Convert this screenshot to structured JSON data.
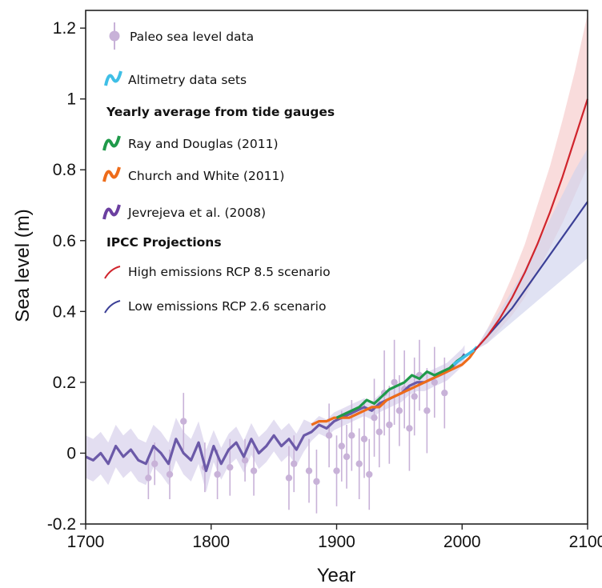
{
  "chart_data": {
    "type": "line",
    "title": "",
    "xlabel": "Year",
    "ylabel": "Sea  level (m)",
    "xlim": [
      1700,
      2100
    ],
    "ylim": [
      -0.2,
      1.25
    ],
    "x_ticks": [
      1700,
      1800,
      1900,
      2000,
      2100
    ],
    "x_tick_labels": [
      "1700",
      "1800",
      "1900",
      "2000",
      "2100"
    ],
    "y_ticks": [
      -0.2,
      0,
      0.2,
      0.4,
      0.6,
      0.8,
      1,
      1.2
    ],
    "y_tick_labels": [
      "-0.2",
      "0",
      "0.2",
      "0.4",
      "0.6",
      "0.8",
      "1",
      "1.2"
    ],
    "grid": false,
    "legend_position": "top-left",
    "legend": {
      "paleo": "Paleo sea level data",
      "altimetry": "Altimetry data sets",
      "tide_header": "Yearly average from tide gauges",
      "ray": "Ray and Douglas (2011)",
      "church": "Church and White (2011)",
      "jevrejeva": "Jevrejeva et al. (2008)",
      "ipcc_header": "IPCC Projections",
      "high": "High emissions RCP 8.5 scenario",
      "low": "Low emissions RCP 2.6 scenario"
    },
    "colors": {
      "paleo": "#c8b2d8",
      "altimetry": "#3fbfe6",
      "ray": "#1f9a4a",
      "church": "#ee6c1a",
      "jevrejeva": "#6b59a8",
      "jevrejeva_band": "#d9d3ec",
      "high": "#d0242c",
      "high_band": "#f6c9c9",
      "low": "#3b3f96",
      "low_band": "#cfd2ec"
    },
    "series": [
      {
        "name": "Jevrejeva et al. (2008)",
        "x": [
          1700,
          1706,
          1712,
          1718,
          1724,
          1730,
          1736,
          1742,
          1748,
          1754,
          1760,
          1766,
          1772,
          1778,
          1784,
          1790,
          1796,
          1802,
          1808,
          1814,
          1820,
          1826,
          1832,
          1838,
          1844,
          1850,
          1856,
          1862,
          1868,
          1874,
          1880,
          1886,
          1892,
          1898,
          1904,
          1910,
          1916,
          1922,
          1928,
          1934,
          1940,
          1946,
          1952,
          1958,
          1964,
          1970,
          1976,
          1982,
          1988,
          1994,
          2000,
          2002
        ],
        "y": [
          -0.01,
          -0.02,
          0.0,
          -0.03,
          0.02,
          -0.01,
          0.01,
          -0.02,
          -0.03,
          0.02,
          0.0,
          -0.03,
          0.04,
          0.0,
          -0.02,
          0.03,
          -0.05,
          0.02,
          -0.03,
          0.01,
          0.03,
          -0.01,
          0.04,
          0.0,
          0.02,
          0.05,
          0.02,
          0.04,
          0.01,
          0.05,
          0.06,
          0.08,
          0.07,
          0.09,
          0.1,
          0.11,
          0.12,
          0.13,
          0.12,
          0.14,
          0.15,
          0.16,
          0.17,
          0.19,
          0.2,
          0.2,
          0.21,
          0.22,
          0.23,
          0.25,
          0.27,
          0.28
        ]
      },
      {
        "name": "Ray and Douglas (2011)",
        "x": [
          1900,
          1906,
          1912,
          1918,
          1924,
          1930,
          1936,
          1942,
          1948,
          1954,
          1960,
          1966,
          1972,
          1978,
          1984,
          1990,
          1996,
          2000,
          2005
        ],
        "y": [
          0.1,
          0.11,
          0.12,
          0.13,
          0.15,
          0.14,
          0.16,
          0.18,
          0.19,
          0.2,
          0.22,
          0.21,
          0.23,
          0.22,
          0.23,
          0.24,
          0.26,
          0.27,
          0.28
        ]
      },
      {
        "name": "Church and White (2011)",
        "x": [
          1880,
          1886,
          1892,
          1898,
          1904,
          1910,
          1916,
          1922,
          1928,
          1934,
          1940,
          1946,
          1952,
          1958,
          1964,
          1970,
          1976,
          1982,
          1988,
          1994,
          2000,
          2006,
          2010
        ],
        "y": [
          0.08,
          0.09,
          0.09,
          0.1,
          0.1,
          0.1,
          0.11,
          0.12,
          0.13,
          0.13,
          0.15,
          0.16,
          0.17,
          0.18,
          0.19,
          0.2,
          0.21,
          0.22,
          0.23,
          0.24,
          0.25,
          0.27,
          0.29
        ]
      },
      {
        "name": "Altimetry data sets",
        "x": [
          1993,
          1997,
          2001,
          2005,
          2009,
          2012
        ],
        "y": [
          0.25,
          0.26,
          0.27,
          0.28,
          0.29,
          0.3
        ]
      },
      {
        "name": "High emissions RCP 8.5 scenario",
        "x": [
          2010,
          2020,
          2030,
          2040,
          2050,
          2060,
          2070,
          2080,
          2090,
          2100
        ],
        "y": [
          0.29,
          0.33,
          0.38,
          0.44,
          0.51,
          0.59,
          0.68,
          0.78,
          0.89,
          1.0
        ],
        "lower": [
          0.29,
          0.31,
          0.35,
          0.39,
          0.44,
          0.51,
          0.58,
          0.65,
          0.73,
          0.81
        ],
        "upper": [
          0.29,
          0.35,
          0.42,
          0.5,
          0.59,
          0.7,
          0.81,
          0.94,
          1.08,
          1.24
        ]
      },
      {
        "name": "Low emissions RCP 2.6 scenario",
        "x": [
          2010,
          2020,
          2030,
          2040,
          2050,
          2060,
          2070,
          2080,
          2090,
          2100
        ],
        "y": [
          0.29,
          0.33,
          0.37,
          0.41,
          0.46,
          0.51,
          0.56,
          0.61,
          0.66,
          0.71
        ],
        "lower": [
          0.29,
          0.31,
          0.34,
          0.37,
          0.4,
          0.43,
          0.46,
          0.49,
          0.52,
          0.55
        ],
        "upper": [
          0.29,
          0.35,
          0.4,
          0.46,
          0.52,
          0.59,
          0.66,
          0.73,
          0.8,
          0.86
        ]
      }
    ],
    "paleo_points": [
      {
        "x": 1750,
        "y": -0.07,
        "err": 0.06
      },
      {
        "x": 1755,
        "y": -0.03,
        "err": 0.06
      },
      {
        "x": 1767,
        "y": -0.06,
        "err": 0.07
      },
      {
        "x": 1778,
        "y": 0.09,
        "err": 0.08
      },
      {
        "x": 1795,
        "y": -0.04,
        "err": 0.07
      },
      {
        "x": 1805,
        "y": -0.06,
        "err": 0.07
      },
      {
        "x": 1815,
        "y": -0.04,
        "err": 0.08
      },
      {
        "x": 1827,
        "y": -0.02,
        "err": 0.06
      },
      {
        "x": 1834,
        "y": -0.05,
        "err": 0.07
      },
      {
        "x": 1862,
        "y": -0.07,
        "err": 0.09
      },
      {
        "x": 1866,
        "y": -0.03,
        "err": 0.08
      },
      {
        "x": 1878,
        "y": -0.05,
        "err": 0.09
      },
      {
        "x": 1884,
        "y": -0.08,
        "err": 0.09
      },
      {
        "x": 1894,
        "y": 0.05,
        "err": 0.09
      },
      {
        "x": 1900,
        "y": -0.05,
        "err": 0.1
      },
      {
        "x": 1904,
        "y": 0.02,
        "err": 0.1
      },
      {
        "x": 1908,
        "y": -0.01,
        "err": 0.09
      },
      {
        "x": 1912,
        "y": 0.05,
        "err": 0.1
      },
      {
        "x": 1918,
        "y": -0.03,
        "err": 0.1
      },
      {
        "x": 1922,
        "y": 0.04,
        "err": 0.11
      },
      {
        "x": 1926,
        "y": -0.06,
        "err": 0.1
      },
      {
        "x": 1930,
        "y": 0.1,
        "err": 0.11
      },
      {
        "x": 1934,
        "y": 0.06,
        "err": 0.1
      },
      {
        "x": 1938,
        "y": 0.17,
        "err": 0.12
      },
      {
        "x": 1942,
        "y": 0.08,
        "err": 0.11
      },
      {
        "x": 1946,
        "y": 0.2,
        "err": 0.12
      },
      {
        "x": 1950,
        "y": 0.12,
        "err": 0.1
      },
      {
        "x": 1954,
        "y": 0.18,
        "err": 0.11
      },
      {
        "x": 1958,
        "y": 0.07,
        "err": 0.12
      },
      {
        "x": 1962,
        "y": 0.16,
        "err": 0.11
      },
      {
        "x": 1966,
        "y": 0.22,
        "err": 0.1
      },
      {
        "x": 1972,
        "y": 0.12,
        "err": 0.12
      },
      {
        "x": 1978,
        "y": 0.2,
        "err": 0.1
      },
      {
        "x": 1986,
        "y": 0.17,
        "err": 0.1
      }
    ]
  }
}
